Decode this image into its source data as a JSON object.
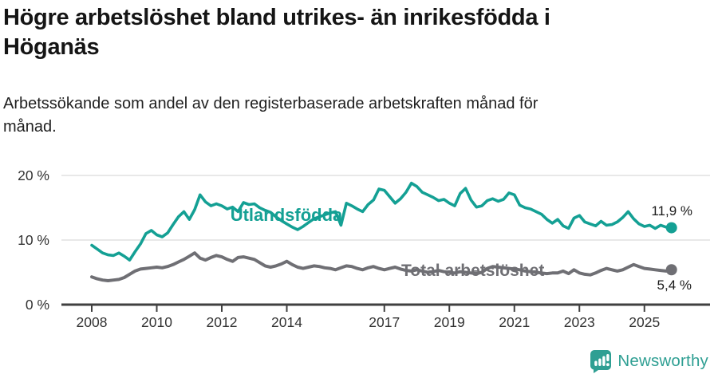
{
  "header": {
    "title": "Högre arbetslöshet bland utrikes- än inrikesfödda i Höganäs",
    "subtitle": "Arbetssökande som andel av den registerbaserade arbetskraften månad för månad."
  },
  "chart_data": {
    "type": "line",
    "x_start_year": 2008,
    "points_per_year": 6,
    "x_tick_years": [
      2008,
      2010,
      2012,
      2014,
      2017,
      2019,
      2021,
      2023,
      2025
    ],
    "x_tick_labels": [
      "2008",
      "2010",
      "2012",
      "2014",
      "2017",
      "2019",
      "2021",
      "2023",
      "2025"
    ],
    "y_ticks": [
      0,
      10,
      20
    ],
    "y_tick_labels": [
      "0 %",
      "10 %",
      "20 %"
    ],
    "ylim": [
      0,
      22.5
    ],
    "grid": "horizontal",
    "legend_position": "inline-labels",
    "series": [
      {
        "name": "Utlandsfödda",
        "color": "#14a094",
        "end_label": "11,9 %",
        "latest_value": 11.9,
        "values": [
          9.2,
          8.6,
          8.0,
          7.7,
          7.6,
          8.0,
          7.5,
          6.9,
          8.2,
          9.4,
          11.0,
          11.5,
          10.8,
          10.5,
          11.1,
          12.4,
          13.6,
          14.4,
          13.2,
          14.7,
          17.0,
          15.9,
          15.3,
          15.6,
          15.3,
          14.8,
          15.1,
          14.4,
          15.8,
          15.5,
          15.6,
          15.0,
          14.6,
          14.3,
          13.6,
          13.0,
          12.5,
          12.0,
          11.6,
          12.1,
          12.7,
          13.3,
          13.6,
          13.9,
          14.2,
          14.4,
          12.3,
          15.7,
          15.3,
          14.8,
          14.4,
          15.5,
          16.2,
          17.9,
          17.7,
          16.7,
          15.7,
          16.4,
          17.4,
          18.8,
          18.3,
          17.4,
          17.0,
          16.6,
          16.1,
          16.3,
          15.7,
          15.3,
          17.2,
          18.0,
          16.2,
          15.1,
          15.3,
          16.1,
          16.4,
          16.0,
          16.3,
          17.3,
          17.0,
          15.4,
          15.0,
          14.8,
          14.4,
          14.0,
          13.2,
          12.6,
          13.2,
          12.2,
          11.8,
          13.4,
          13.8,
          12.8,
          12.5,
          12.2,
          12.9,
          12.3,
          12.4,
          12.8,
          13.5,
          14.4,
          13.3,
          12.5,
          12.1,
          12.3,
          11.8,
          12.3,
          12.0,
          11.9
        ]
      },
      {
        "name": "Total arbetslöshet",
        "color": "#6f6f74",
        "end_label": "5,4 %",
        "latest_value": 5.4,
        "values": [
          4.3,
          4.0,
          3.8,
          3.7,
          3.8,
          3.9,
          4.2,
          4.7,
          5.2,
          5.5,
          5.6,
          5.7,
          5.8,
          5.7,
          5.9,
          6.2,
          6.6,
          7.0,
          7.5,
          8.0,
          7.2,
          6.9,
          7.3,
          7.6,
          7.4,
          7.0,
          6.7,
          7.3,
          7.4,
          7.2,
          7.0,
          6.5,
          6.0,
          5.8,
          6.0,
          6.3,
          6.7,
          6.2,
          5.8,
          5.6,
          5.8,
          6.0,
          5.9,
          5.7,
          5.6,
          5.4,
          5.7,
          6.0,
          5.9,
          5.6,
          5.4,
          5.7,
          5.9,
          5.6,
          5.4,
          5.6,
          5.8,
          5.5,
          5.3,
          5.2,
          5.4,
          5.2,
          5.0,
          5.1,
          5.3,
          5.1,
          5.0,
          4.9,
          5.1,
          5.0,
          4.9,
          4.8,
          5.0,
          5.6,
          5.9,
          5.8,
          5.7,
          5.6,
          5.5,
          5.4,
          5.2,
          5.1,
          5.0,
          4.9,
          4.8,
          4.9,
          4.9,
          5.2,
          4.8,
          5.4,
          4.9,
          4.7,
          4.6,
          4.9,
          5.3,
          5.6,
          5.4,
          5.2,
          5.4,
          5.8,
          6.2,
          5.9,
          5.6,
          5.5,
          5.4,
          5.3,
          5.2,
          5.4
        ]
      }
    ]
  },
  "footer": {
    "brand": "Newsworthy",
    "brand_color": "#2f9f93",
    "logo_icon": "bar-chart-speech-bubble"
  }
}
